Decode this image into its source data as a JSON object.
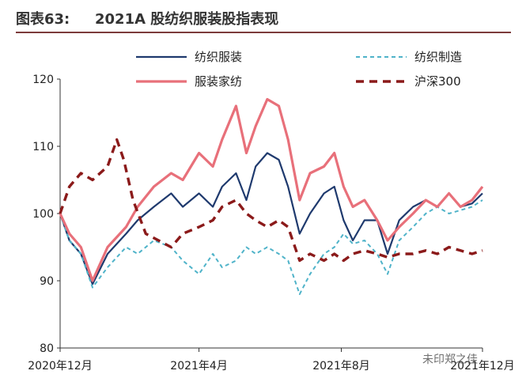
{
  "header": {
    "figure_label": "图表63:",
    "title": "2021A 股纺织服装股指表现"
  },
  "watermark": "未印郑之佳",
  "colors": {
    "title_rule": "#7c3b3b"
  },
  "chart_data": {
    "type": "line",
    "title": "2021A 股纺织服装股指表现",
    "xlabel": "",
    "ylabel": "",
    "ylim": [
      80,
      120
    ],
    "yticks": [
      80,
      90,
      100,
      110,
      120
    ],
    "x_range": [
      "2020-12-31",
      "2021-12-31"
    ],
    "xticks": [
      {
        "date": "2020-12-31",
        "label": "2020年12月"
      },
      {
        "date": "2021-04-30",
        "label": "2021年4月"
      },
      {
        "date": "2021-08-31",
        "label": "2021年8月"
      },
      {
        "date": "2021-12-31",
        "label": "2021年12月"
      }
    ],
    "grid": false,
    "legend": "top",
    "series": [
      {
        "name": "纺织服装",
        "color": "#1f3a6e",
        "dash": "solid",
        "width": 2.2,
        "points": [
          [
            "2020-12-31",
            100
          ],
          [
            "2021-01-08",
            96
          ],
          [
            "2021-01-18",
            94
          ],
          [
            "2021-01-28",
            89.5
          ],
          [
            "2021-02-10",
            94
          ],
          [
            "2021-02-26",
            97
          ],
          [
            "2021-03-08",
            99
          ],
          [
            "2021-03-22",
            101
          ],
          [
            "2021-04-06",
            103
          ],
          [
            "2021-04-16",
            101
          ],
          [
            "2021-04-30",
            103
          ],
          [
            "2021-05-12",
            101
          ],
          [
            "2021-05-20",
            104
          ],
          [
            "2021-06-01",
            106
          ],
          [
            "2021-06-10",
            102
          ],
          [
            "2021-06-18",
            107
          ],
          [
            "2021-06-28",
            109
          ],
          [
            "2021-07-08",
            108
          ],
          [
            "2021-07-16",
            104
          ],
          [
            "2021-07-26",
            97
          ],
          [
            "2021-08-04",
            100
          ],
          [
            "2021-08-16",
            103
          ],
          [
            "2021-08-25",
            104
          ],
          [
            "2021-09-02",
            99
          ],
          [
            "2021-09-10",
            96
          ],
          [
            "2021-09-20",
            99
          ],
          [
            "2021-10-01",
            99
          ],
          [
            "2021-10-10",
            94
          ],
          [
            "2021-10-20",
            99
          ],
          [
            "2021-11-01",
            101
          ],
          [
            "2021-11-12",
            102
          ],
          [
            "2021-11-22",
            101
          ],
          [
            "2021-12-02",
            103
          ],
          [
            "2021-12-12",
            101
          ],
          [
            "2021-12-22",
            101.5
          ],
          [
            "2021-12-31",
            103
          ]
        ]
      },
      {
        "name": "纺织制造",
        "color": "#4fb3c9",
        "dash": "5,4",
        "width": 2,
        "points": [
          [
            "2020-12-31",
            100
          ],
          [
            "2021-01-08",
            96
          ],
          [
            "2021-01-18",
            94
          ],
          [
            "2021-01-28",
            89
          ],
          [
            "2021-02-10",
            92
          ],
          [
            "2021-02-26",
            95
          ],
          [
            "2021-03-08",
            94
          ],
          [
            "2021-03-22",
            96
          ],
          [
            "2021-04-06",
            95
          ],
          [
            "2021-04-16",
            93
          ],
          [
            "2021-04-30",
            91
          ],
          [
            "2021-05-12",
            94
          ],
          [
            "2021-05-20",
            92
          ],
          [
            "2021-06-01",
            93
          ],
          [
            "2021-06-10",
            95
          ],
          [
            "2021-06-18",
            94
          ],
          [
            "2021-06-28",
            95
          ],
          [
            "2021-07-08",
            94
          ],
          [
            "2021-07-16",
            93
          ],
          [
            "2021-07-26",
            88
          ],
          [
            "2021-08-04",
            91
          ],
          [
            "2021-08-16",
            94
          ],
          [
            "2021-08-25",
            95
          ],
          [
            "2021-09-02",
            97
          ],
          [
            "2021-09-10",
            95.5
          ],
          [
            "2021-09-20",
            96
          ],
          [
            "2021-10-01",
            94
          ],
          [
            "2021-10-10",
            91
          ],
          [
            "2021-10-20",
            96
          ],
          [
            "2021-11-01",
            98
          ],
          [
            "2021-11-12",
            100
          ],
          [
            "2021-11-22",
            101
          ],
          [
            "2021-12-02",
            100
          ],
          [
            "2021-12-12",
            100.5
          ],
          [
            "2021-12-22",
            101
          ],
          [
            "2021-12-31",
            102
          ]
        ]
      },
      {
        "name": "服装家纺",
        "color": "#e8707a",
        "dash": "solid",
        "width": 3.2,
        "points": [
          [
            "2020-12-31",
            100
          ],
          [
            "2021-01-08",
            97
          ],
          [
            "2021-01-18",
            95
          ],
          [
            "2021-01-28",
            90
          ],
          [
            "2021-02-10",
            95
          ],
          [
            "2021-02-26",
            98
          ],
          [
            "2021-03-08",
            101
          ],
          [
            "2021-03-22",
            104
          ],
          [
            "2021-04-06",
            106
          ],
          [
            "2021-04-16",
            105
          ],
          [
            "2021-04-30",
            109
          ],
          [
            "2021-05-12",
            107
          ],
          [
            "2021-05-20",
            111
          ],
          [
            "2021-06-01",
            116
          ],
          [
            "2021-06-10",
            109
          ],
          [
            "2021-06-18",
            113
          ],
          [
            "2021-06-28",
            117
          ],
          [
            "2021-07-08",
            116
          ],
          [
            "2021-07-16",
            111
          ],
          [
            "2021-07-26",
            102
          ],
          [
            "2021-08-04",
            106
          ],
          [
            "2021-08-16",
            107
          ],
          [
            "2021-08-25",
            109
          ],
          [
            "2021-09-02",
            104
          ],
          [
            "2021-09-10",
            101
          ],
          [
            "2021-09-20",
            102
          ],
          [
            "2021-10-01",
            99
          ],
          [
            "2021-10-10",
            96
          ],
          [
            "2021-10-20",
            98
          ],
          [
            "2021-11-01",
            100
          ],
          [
            "2021-11-12",
            102
          ],
          [
            "2021-11-22",
            101
          ],
          [
            "2021-12-02",
            103
          ],
          [
            "2021-12-12",
            101
          ],
          [
            "2021-12-22",
            102
          ],
          [
            "2021-12-31",
            104
          ]
        ]
      },
      {
        "name": "沪深300",
        "color": "#8b1a1a",
        "dash": "10,7",
        "width": 3.4,
        "points": [
          [
            "2020-12-31",
            100
          ],
          [
            "2021-01-08",
            104
          ],
          [
            "2021-01-18",
            106
          ],
          [
            "2021-01-28",
            105
          ],
          [
            "2021-02-10",
            107
          ],
          [
            "2021-02-18",
            111
          ],
          [
            "2021-02-24",
            108
          ],
          [
            "2021-03-04",
            102
          ],
          [
            "2021-03-15",
            97
          ],
          [
            "2021-03-26",
            96
          ],
          [
            "2021-04-06",
            95
          ],
          [
            "2021-04-16",
            97
          ],
          [
            "2021-04-30",
            98
          ],
          [
            "2021-05-12",
            99
          ],
          [
            "2021-05-20",
            101
          ],
          [
            "2021-06-01",
            102
          ],
          [
            "2021-06-10",
            100
          ],
          [
            "2021-06-18",
            99
          ],
          [
            "2021-06-28",
            98
          ],
          [
            "2021-07-08",
            99
          ],
          [
            "2021-07-16",
            98
          ],
          [
            "2021-07-26",
            93
          ],
          [
            "2021-08-04",
            94
          ],
          [
            "2021-08-16",
            93
          ],
          [
            "2021-08-25",
            94
          ],
          [
            "2021-09-02",
            93
          ],
          [
            "2021-09-10",
            94
          ],
          [
            "2021-09-20",
            94.5
          ],
          [
            "2021-10-01",
            94
          ],
          [
            "2021-10-10",
            93.5
          ],
          [
            "2021-10-20",
            94
          ],
          [
            "2021-11-01",
            94
          ],
          [
            "2021-11-12",
            94.5
          ],
          [
            "2021-11-22",
            94
          ],
          [
            "2021-12-02",
            95
          ],
          [
            "2021-12-12",
            94.5
          ],
          [
            "2021-12-22",
            94
          ],
          [
            "2021-12-31",
            94.5
          ]
        ]
      }
    ]
  }
}
